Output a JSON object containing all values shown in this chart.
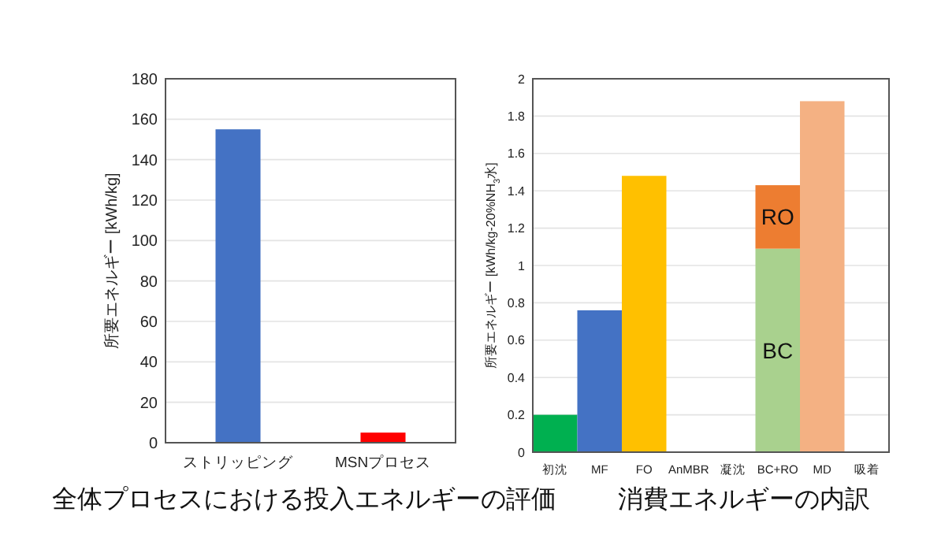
{
  "chart_data": [
    {
      "type": "bar",
      "title": "全体プロセスにおける投入エネルギーの評価",
      "ylabel": "所要エネルギー [kWh/kg]",
      "categories": [
        "ストリッピング",
        "MSNプロセス"
      ],
      "values": [
        155,
        5
      ],
      "colors": [
        "#4472c4",
        "#ff0000"
      ],
      "ylim": [
        0,
        180
      ],
      "yticks": [
        0,
        20,
        40,
        60,
        80,
        100,
        120,
        140,
        160,
        180
      ],
      "grid": "y"
    },
    {
      "type": "bar",
      "title": "消費エネルギーの内訳",
      "ylabel": "所要エネルギー [kWh/kg-20%NH$_{3}$水]",
      "categories": [
        "初沈",
        "MF",
        "FO",
        "AnMBR",
        "凝沈",
        "BC+RO",
        "MD",
        "吸着"
      ],
      "stacked": true,
      "series": [
        {
          "colors": [
            "#00b050",
            "#4472c4",
            "#ffc000",
            null,
            null,
            null,
            "#f4b183",
            null
          ],
          "values": [
            0.2,
            0.76,
            1.48,
            null,
            null,
            null,
            1.88,
            null
          ]
        },
        {
          "name": "BC",
          "color": "#a9d18e",
          "values": [
            null,
            null,
            null,
            null,
            null,
            1.09,
            null,
            null
          ]
        },
        {
          "name": "RO",
          "color": "#ed7d31",
          "values": [
            null,
            null,
            null,
            null,
            null,
            0.34,
            null,
            null
          ]
        }
      ],
      "ylim": [
        0,
        2
      ],
      "yticks": [
        0,
        0.2,
        0.4,
        0.6,
        0.8,
        1,
        1.2,
        1.4,
        1.6,
        1.8,
        2
      ],
      "grid": "y"
    }
  ]
}
